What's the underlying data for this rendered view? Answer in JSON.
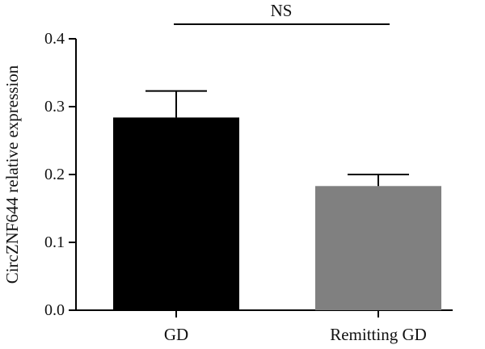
{
  "chart_data": {
    "type": "bar",
    "categories": [
      "GD",
      "Remitting GD"
    ],
    "values": [
      0.284,
      0.183
    ],
    "error_upper": [
      0.323,
      0.2
    ],
    "ylabel": "CircZNF644 relative expression",
    "ylim": [
      0,
      0.4
    ],
    "yticks": [
      0.0,
      0.1,
      0.2,
      0.3,
      0.4
    ],
    "ytick_labels": [
      "0.0",
      "0.1",
      "0.2",
      "0.3",
      "0.4"
    ],
    "bar_colors": [
      "#000000",
      "#808080"
    ],
    "significance": {
      "label": "NS",
      "between": [
        "GD",
        "Remitting GD"
      ]
    },
    "grid": false,
    "legend": "none"
  }
}
